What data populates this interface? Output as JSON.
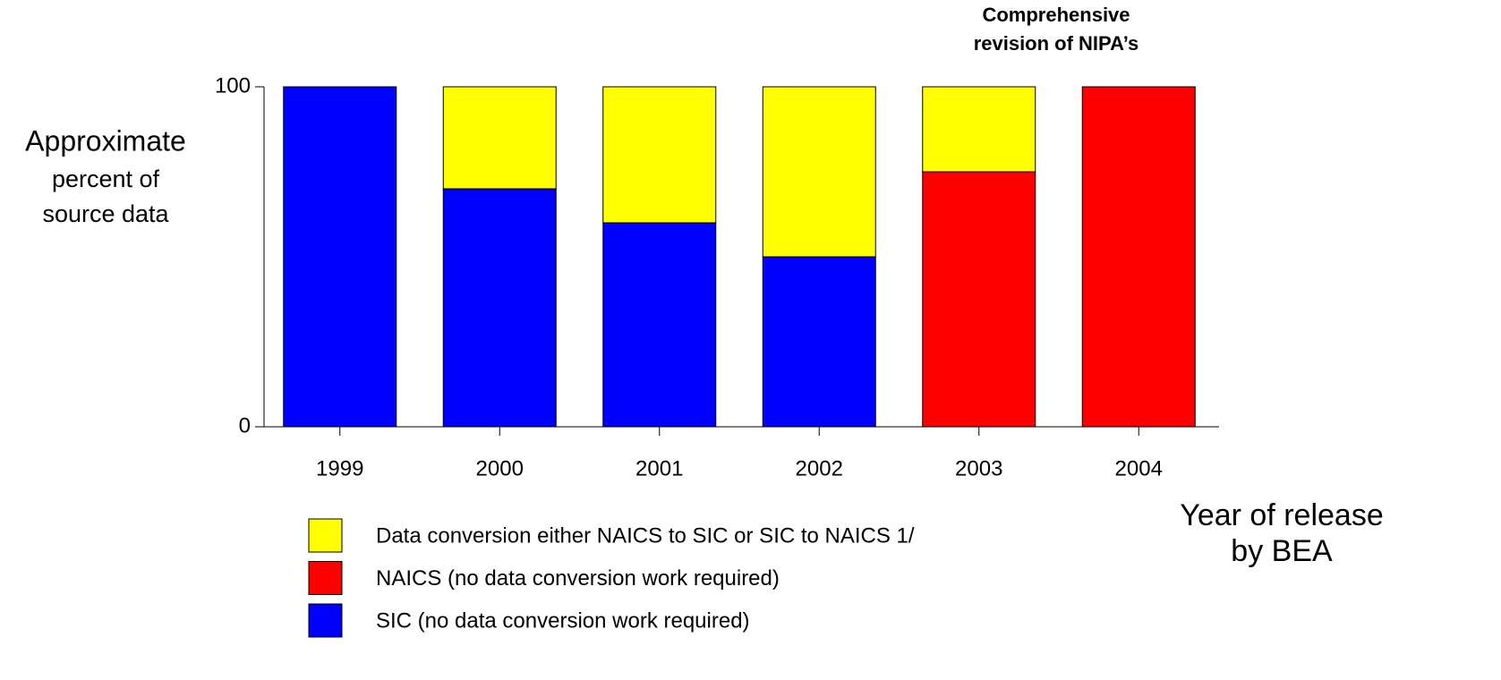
{
  "chart_data": {
    "type": "stacked_bar",
    "annotation": [
      "Comprehensive",
      "revision of NIPA’s"
    ],
    "y_label": [
      "Approximate",
      "percent of",
      "source data"
    ],
    "x_label": [
      "Year of release",
      "by BEA"
    ],
    "categories": [
      "1999",
      "2000",
      "2001",
      "2002",
      "2003",
      "2004"
    ],
    "series": [
      {
        "name": "SIC (no data conversion work required)",
        "color": "#0000ff",
        "values": [
          100,
          70,
          60,
          50,
          0,
          0
        ]
      },
      {
        "name": "NAICS (no data conversion work required)",
        "color": "#ff0000",
        "values": [
          0,
          0,
          0,
          0,
          75,
          100
        ]
      },
      {
        "name": "Data conversion either NAICS to SIC or SIC to NAICS 1/",
        "color": "#ffff00",
        "values": [
          0,
          30,
          40,
          50,
          25,
          0
        ]
      }
    ],
    "ylim": [
      0,
      100
    ],
    "yticks": [
      0,
      100
    ],
    "grid": false
  }
}
